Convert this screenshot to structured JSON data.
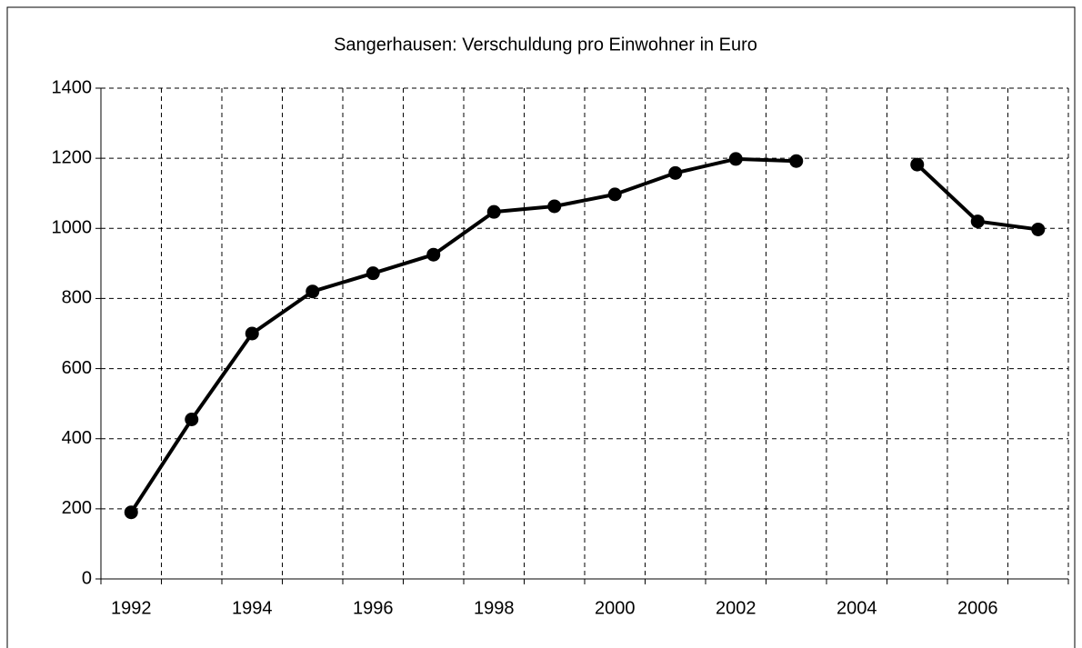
{
  "chart_data": {
    "type": "line",
    "title": "Sangerhausen: Verschuldung pro Einwohner in Euro",
    "categories": [
      "1992",
      null,
      "1994",
      null,
      "1996",
      null,
      "1998",
      null,
      "2000",
      null,
      "2002",
      null,
      "2004",
      null,
      "2006",
      null
    ],
    "values": [
      190,
      455,
      700,
      820,
      872,
      925,
      1047,
      1063,
      1097,
      1158,
      1198,
      1192,
      null,
      1182,
      1020,
      997
    ],
    "color": "#000000",
    "ylim": [
      0,
      1400
    ],
    "yticks": [
      0,
      200,
      400,
      600,
      800,
      1000,
      1200,
      1400
    ],
    "grid": true
  }
}
